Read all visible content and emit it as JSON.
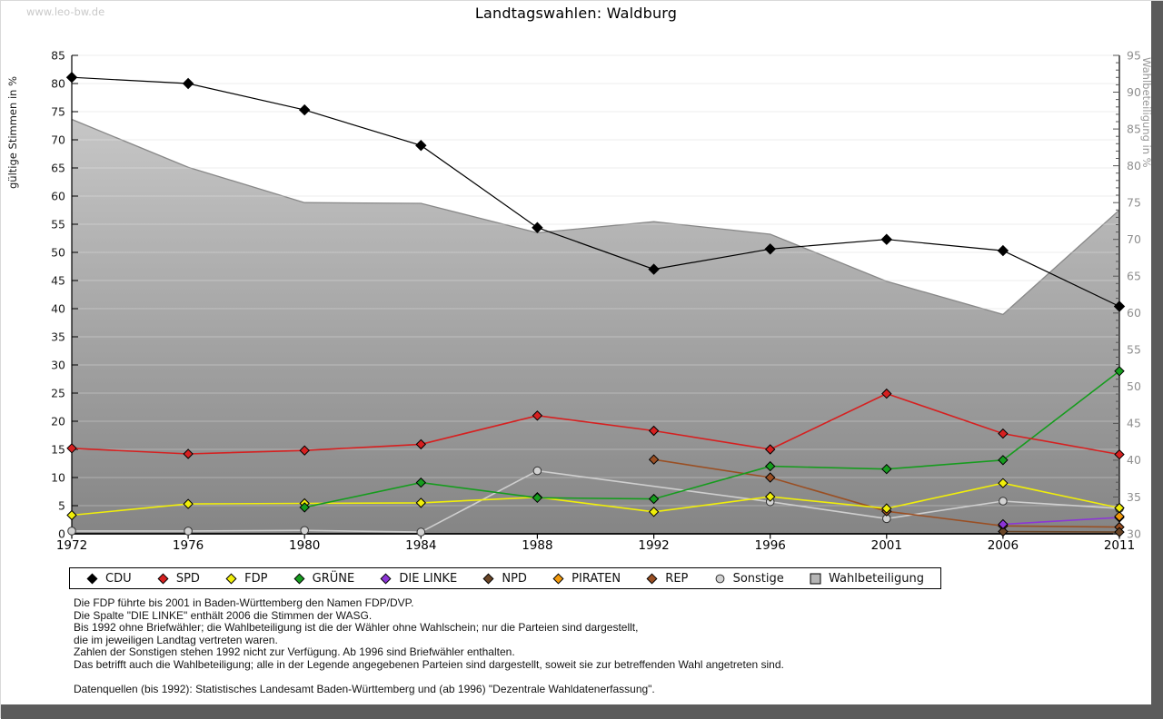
{
  "watermark": "www.leo-bw.de",
  "title": "Landtagswahlen: Waldburg",
  "chart_data": {
    "type": "line",
    "title": "Landtagswahlen: Waldburg",
    "categories": [
      "1972",
      "1976",
      "1980",
      "1984",
      "1988",
      "1992",
      "1996",
      "2001",
      "2006",
      "2011"
    ],
    "left_axis": {
      "label": "gültige Stimmen in %",
      "min": 0,
      "max": 85,
      "step": 5
    },
    "right_axis": {
      "label": "Wahlbeteiligung in %",
      "min": 30,
      "max": 95,
      "step": 5,
      "minor_step": 1
    },
    "grid": true,
    "legend_position": "bottom",
    "area_fill_top": "#c6c6c6",
    "area_fill_bottom": "#858585",
    "area_outline": "#888888",
    "series": [
      {
        "key": "cdu",
        "name": "CDU",
        "color": "#000000",
        "marker": "diamond",
        "axis": "left",
        "z": 9,
        "values": [
          81.1,
          80.0,
          75.3,
          69.0,
          54.4,
          47.0,
          50.6,
          52.3,
          50.3,
          40.4
        ]
      },
      {
        "key": "spd",
        "name": "SPD",
        "color": "#d62020",
        "marker": "diamond",
        "axis": "left",
        "z": 8,
        "values": [
          15.2,
          14.2,
          14.8,
          15.9,
          21.0,
          18.3,
          15.0,
          24.9,
          17.8,
          14.1
        ]
      },
      {
        "key": "fdp",
        "name": "FDP",
        "color": "#f0ee0a",
        "marker": "diamond",
        "axis": "left",
        "z": 6,
        "values": [
          3.3,
          5.3,
          5.4,
          5.5,
          6.5,
          3.9,
          6.6,
          4.5,
          9.0,
          4.6
        ]
      },
      {
        "key": "gruene",
        "name": "GRÜNE",
        "color": "#169c1e",
        "marker": "diamond",
        "axis": "left",
        "z": 7,
        "values": [
          null,
          null,
          4.7,
          9.1,
          6.4,
          6.2,
          12.0,
          11.5,
          13.1,
          28.9
        ]
      },
      {
        "key": "linke",
        "name": "DIE LINKE",
        "color": "#8c35d6",
        "marker": "diamond",
        "axis": "left",
        "z": 4,
        "values": [
          null,
          null,
          null,
          null,
          null,
          null,
          null,
          null,
          1.7,
          2.9
        ]
      },
      {
        "key": "npd",
        "name": "NPD",
        "color": "#6b4627",
        "marker": "diamond",
        "axis": "left",
        "z": 3,
        "values": [
          null,
          null,
          null,
          null,
          null,
          null,
          null,
          null,
          0.4,
          0.3
        ]
      },
      {
        "key": "piraten",
        "name": "PIRATEN",
        "color": "#f29a0d",
        "marker": "diamond",
        "axis": "left",
        "z": 5,
        "values": [
          null,
          null,
          null,
          null,
          null,
          null,
          null,
          null,
          null,
          3.1
        ]
      },
      {
        "key": "rep",
        "name": "REP",
        "color": "#9a4f23",
        "marker": "diamond",
        "axis": "left",
        "z": 2,
        "values": [
          null,
          null,
          null,
          null,
          null,
          13.2,
          10.0,
          4.0,
          1.4,
          1.2
        ]
      },
      {
        "key": "sonstige",
        "name": "Sonstige",
        "color": "#d2d2d2",
        "line_color": "#cfcfcf",
        "marker": "circle",
        "axis": "left",
        "z": 1,
        "values": [
          0.5,
          0.5,
          0.6,
          0.3,
          11.2,
          null,
          5.7,
          2.7,
          5.8,
          4.5
        ]
      },
      {
        "key": "wahlbeteiligung",
        "name": "Wahlbeteiligung",
        "color": "#b5b5b5",
        "marker": "square",
        "axis": "right",
        "type": "area",
        "z": 0,
        "values": [
          86.3,
          79.8,
          75.0,
          74.9,
          70.9,
          72.4,
          70.7,
          64.3,
          59.8,
          74.0
        ]
      }
    ]
  },
  "notes": [
    "Die FDP führte bis 2001 in Baden-Württemberg den Namen FDP/DVP.",
    "Die Spalte \"DIE LINKE\" enthält 2006 die Stimmen der WASG.",
    "Bis 1992 ohne Briefwähler; die Wahlbeteiligung ist die der Wähler ohne Wahlschein; nur die Parteien sind dargestellt,",
    "die im jeweiligen Landtag vertreten waren.",
    "Zahlen der Sonstigen stehen 1992 nicht zur Verfügung. Ab 1996 sind Briefwähler enthalten.",
    "Das betrifft auch die Wahlbeteiligung; alle in der Legende angegebenen Parteien sind dargestellt, soweit sie zur betreffenden Wahl angetreten sind."
  ],
  "source": "Datenquellen (bis 1992): Statistisches Landesamt Baden-Württemberg und (ab 1996) \"Dezentrale Wahldatenerfassung\"."
}
